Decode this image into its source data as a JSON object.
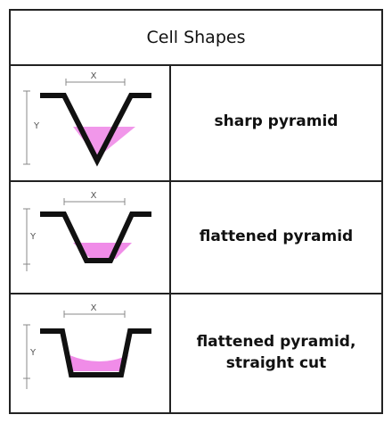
{
  "table": {
    "title": "Cell Shapes",
    "rows": [
      {
        "shape": "sharp pyramid",
        "x_label": "X",
        "y_label": "Y"
      },
      {
        "shape": "flattened pyramid",
        "x_label": "X",
        "y_label": "Y"
      },
      {
        "shape": "flattened pyramid, straight cut",
        "x_label": "X",
        "y_label": "Y"
      }
    ]
  }
}
